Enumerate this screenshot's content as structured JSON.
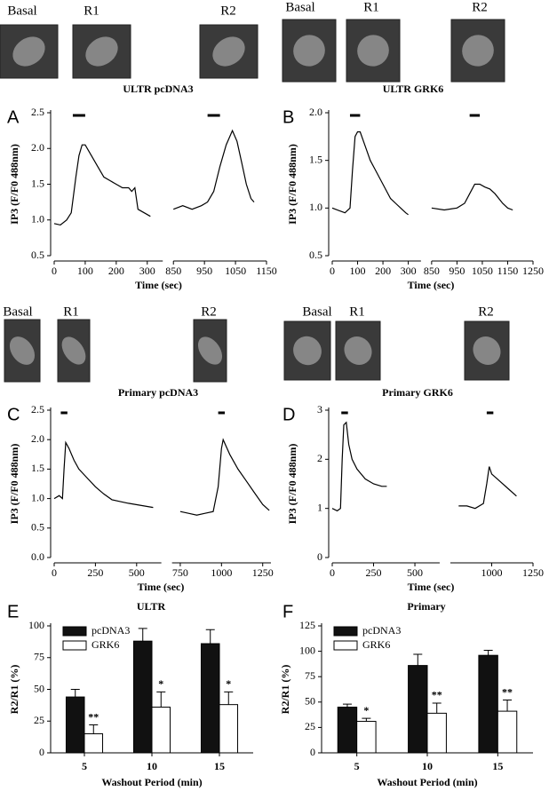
{
  "chart_data": [
    {
      "type": "line",
      "panel": "A",
      "title": "ULTR pcDNA3",
      "image_labels": [
        "Basal",
        "R1",
        "R2"
      ],
      "xlabel": "Time (sec)",
      "ylabel": "IP3 (F/F0 488nm)",
      "color": "#000000",
      "x": [
        0,
        20,
        40,
        55,
        70,
        80,
        90,
        100,
        120,
        140,
        160,
        180,
        200,
        220,
        240,
        250,
        260,
        270,
        290,
        310,
        330,
        850,
        880,
        910,
        940,
        960,
        980,
        1000,
        1020,
        1040,
        1055,
        1070,
        1085,
        1100,
        1110
      ],
      "values": [
        0.95,
        0.93,
        1.0,
        1.1,
        1.6,
        1.9,
        2.05,
        2.05,
        1.9,
        1.75,
        1.6,
        1.55,
        1.5,
        1.45,
        1.45,
        1.4,
        1.45,
        1.15,
        1.1,
        1.05,
        null,
        1.15,
        1.2,
        1.15,
        1.2,
        1.25,
        1.4,
        1.75,
        2.05,
        2.25,
        2.1,
        1.8,
        1.5,
        1.3,
        1.25
      ],
      "xlim_segments": [
        [
          0,
          350
        ],
        [
          850,
          1150
        ]
      ],
      "xticks": [
        0,
        100,
        200,
        300,
        850,
        950,
        1050,
        1150
      ],
      "ylim": [
        0.5,
        2.5
      ],
      "yticks": [
        0.5,
        {
          "value": 1,
          "label": "1.0"
        },
        1.5,
        {
          "value": 2,
          "label": "2.0"
        },
        2.5
      ],
      "stimuli": [
        [
          60,
          100
        ],
        [
          960,
          1000
        ]
      ]
    },
    {
      "type": "line",
      "panel": "B",
      "title": "ULTR GRK6",
      "image_labels": [
        "Basal",
        "R1",
        "R2"
      ],
      "xlabel": "Time (sec)",
      "ylabel": "IP3 (F/F0 488nm)",
      "color": "#000000",
      "x": [
        0,
        30,
        50,
        70,
        80,
        90,
        100,
        110,
        130,
        150,
        170,
        190,
        210,
        230,
        250,
        270,
        290,
        300,
        320,
        850,
        900,
        950,
        980,
        1000,
        1020,
        1040,
        1060,
        1080,
        1100,
        1130,
        1150,
        1170
      ],
      "values": [
        1.0,
        0.97,
        0.95,
        1.0,
        1.4,
        1.75,
        1.8,
        1.8,
        1.65,
        1.5,
        1.4,
        1.3,
        1.2,
        1.1,
        1.05,
        1.0,
        0.95,
        0.93,
        null,
        1.0,
        0.98,
        1.0,
        1.05,
        1.15,
        1.25,
        1.25,
        1.22,
        1.2,
        1.15,
        1.05,
        1.0,
        0.98
      ],
      "xlim_segments": [
        [
          0,
          350
        ],
        [
          850,
          1250
        ]
      ],
      "xticks": [
        0,
        100,
        200,
        300,
        850,
        950,
        1050,
        1150,
        1250
      ],
      "ylim": [
        0.5,
        2.0
      ],
      "yticks": [
        0.5,
        {
          "value": 1,
          "label": "1.0"
        },
        1.5,
        {
          "value": 2,
          "label": "2.0"
        }
      ],
      "stimuli": [
        [
          70,
          110
        ],
        [
          1000,
          1040
        ]
      ]
    },
    {
      "type": "line",
      "panel": "C",
      "title": "Primary pcDNA3",
      "image_labels": [
        "Basal",
        "R1",
        "R2"
      ],
      "xlabel": "Time (sec)",
      "ylabel": "IP3 (F/F0 488nm)",
      "color": "#000000",
      "x": [
        0,
        30,
        50,
        60,
        70,
        90,
        120,
        150,
        200,
        250,
        300,
        350,
        400,
        450,
        600,
        650,
        750,
        800,
        850,
        900,
        950,
        980,
        1000,
        1010,
        1050,
        1100,
        1150,
        1200,
        1250,
        1290
      ],
      "values": [
        1.0,
        1.05,
        1.0,
        1.5,
        1.95,
        1.85,
        1.65,
        1.5,
        1.35,
        1.2,
        1.08,
        0.98,
        0.95,
        0.92,
        0.85,
        null,
        0.78,
        0.75,
        0.72,
        0.75,
        0.78,
        1.2,
        1.85,
        2.0,
        1.75,
        1.5,
        1.3,
        1.1,
        0.9,
        0.8
      ],
      "xlim_segments": [
        [
          0,
          650
        ],
        [
          700,
          1300
        ]
      ],
      "xticks": [
        0,
        250,
        500,
        750,
        1000,
        1250
      ],
      "ylim": [
        0,
        2.5
      ],
      "yticks": [
        {
          "value": 0,
          "label": "0.0"
        },
        0.5,
        {
          "value": 1,
          "label": "1.0"
        },
        1.5,
        {
          "value": 2,
          "label": "2.0"
        },
        2.5
      ],
      "stimuli": [
        [
          40,
          80
        ],
        [
          980,
          1020
        ]
      ]
    },
    {
      "type": "line",
      "panel": "D",
      "title": "Primary GRK6",
      "image_labels": [
        "Basal",
        "R1",
        "R2"
      ],
      "xlabel": "Time (sec)",
      "ylabel": "IP3 (F/F0 488nm)",
      "color": "#000000",
      "x": [
        0,
        30,
        50,
        60,
        70,
        85,
        100,
        120,
        150,
        200,
        250,
        300,
        330,
        400,
        800,
        850,
        900,
        950,
        970,
        985,
        1000,
        1050,
        1100,
        1150
      ],
      "values": [
        1.0,
        0.95,
        1.0,
        2.0,
        2.7,
        2.75,
        2.3,
        2.0,
        1.8,
        1.6,
        1.5,
        1.45,
        1.45,
        null,
        1.05,
        1.05,
        1.0,
        1.1,
        1.5,
        1.85,
        1.7,
        1.55,
        1.4,
        1.25
      ],
      "xlim_segments": [
        [
          0,
          650
        ],
        [
          750,
          1250
        ]
      ],
      "xticks": [
        0,
        250,
        500,
        1000,
        1250
      ],
      "ylim": [
        0,
        3
      ],
      "yticks": [
        0,
        1,
        2,
        3
      ],
      "stimuli": [
        [
          55,
          95
        ],
        [
          970,
          1010
        ]
      ]
    },
    {
      "type": "bar",
      "panel": "E",
      "title": "ULTR",
      "xlabel": "Washout Period (min)",
      "ylabel": "R2/R1 (%)",
      "categories": [
        "5",
        "10",
        "15"
      ],
      "series": [
        {
          "name": "pcDNA3",
          "color": "#111111",
          "values": [
            44,
            88,
            86
          ],
          "errors": [
            6,
            10,
            11
          ]
        },
        {
          "name": "GRK6",
          "color": "#ffffff",
          "values": [
            15,
            36,
            38
          ],
          "errors": [
            7,
            12,
            10
          ],
          "markers": [
            "**",
            "*",
            "*"
          ]
        }
      ],
      "ylim": [
        0,
        100
      ],
      "yticks": [
        0,
        25,
        50,
        75,
        100
      ]
    },
    {
      "type": "bar",
      "panel": "F",
      "title": "Primary",
      "xlabel": "Washout Period (min)",
      "ylabel": "R2/R1 (%)",
      "categories": [
        "5",
        "10",
        "15"
      ],
      "series": [
        {
          "name": "pcDNA3",
          "color": "#111111",
          "values": [
            45,
            86,
            96
          ],
          "errors": [
            3,
            11,
            5
          ]
        },
        {
          "name": "GRK6",
          "color": "#ffffff",
          "values": [
            31,
            39,
            41
          ],
          "errors": [
            3,
            10,
            11
          ],
          "markers": [
            "*",
            "**",
            "**"
          ]
        }
      ],
      "ylim": [
        0,
        125
      ],
      "yticks": [
        0,
        25,
        50,
        75,
        100,
        125
      ]
    }
  ]
}
